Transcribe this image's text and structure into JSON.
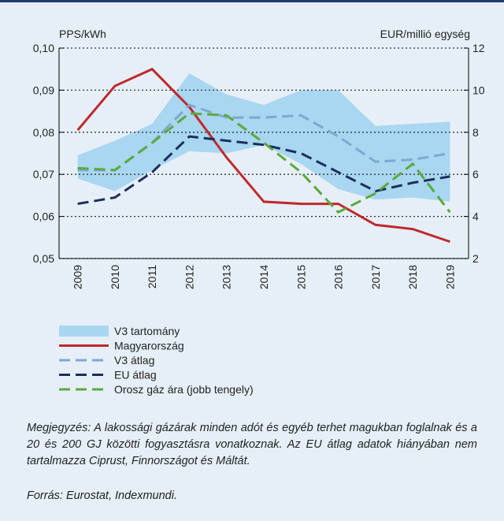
{
  "chart_data": {
    "type": "line",
    "ylabel": "PPS/kWh",
    "y2label": "EUR/millió egység",
    "categories": [
      "2009",
      "2010",
      "2011",
      "2012",
      "2013",
      "2014",
      "2015",
      "2016",
      "2017",
      "2018",
      "2019"
    ],
    "ylim": [
      0.05,
      0.1
    ],
    "yticks": [
      {
        "value": 0.05,
        "label": "0,05"
      },
      {
        "value": 0.06,
        "label": "0,06"
      },
      {
        "value": 0.07,
        "label": "0,07"
      },
      {
        "value": 0.08,
        "label": "0,08"
      },
      {
        "value": 0.09,
        "label": "0,09"
      },
      {
        "value": 0.1,
        "label": "0,10"
      }
    ],
    "y2lim": [
      2,
      12
    ],
    "y2ticks": [
      2,
      4,
      6,
      8,
      10,
      12
    ],
    "grid": true,
    "band": {
      "name": "V3 tartomány",
      "color": "#a9d6f0",
      "low": [
        0.069,
        0.066,
        0.071,
        0.0755,
        0.075,
        0.077,
        0.0725,
        0.0665,
        0.064,
        0.0645,
        0.0635
      ],
      "high": [
        0.0745,
        0.078,
        0.082,
        0.094,
        0.089,
        0.0865,
        0.09,
        0.09,
        0.0815,
        0.082,
        0.0825
      ]
    },
    "series": [
      {
        "name": "Magyarország",
        "color": "#c0282d",
        "dash": "none",
        "values": [
          0.0805,
          0.091,
          0.095,
          0.086,
          0.074,
          0.0635,
          0.063,
          0.063,
          0.058,
          0.057,
          0.054
        ]
      },
      {
        "name": "V3 átlag",
        "color": "#7fa7d0",
        "dash": "14 7",
        "values": [
          0.071,
          0.071,
          0.0775,
          0.0865,
          0.0835,
          0.0835,
          0.084,
          0.079,
          0.073,
          0.0735,
          0.075
        ]
      },
      {
        "name": "EU átlag",
        "color": "#1b2f5c",
        "dash": "14 7",
        "values": [
          0.063,
          0.0645,
          0.0705,
          0.079,
          0.078,
          0.077,
          0.075,
          0.0705,
          0.066,
          0.068,
          0.0695
        ]
      },
      {
        "name": "Orosz gáz ára (jobb tengely)",
        "color": "#5aaa3c",
        "dash": "14 7",
        "axis": "y2",
        "values": [
          6.3,
          6.2,
          7.5,
          8.9,
          8.8,
          7.5,
          6.1,
          4.2,
          5.1,
          6.5,
          4.2
        ]
      }
    ]
  },
  "notes": {
    "remark": "Megjegyzés: A lakossági gázárak minden adót és egyéb terhet magukban foglalnak és a 20 és 200 GJ közötti fogyasztásra vonatkoznak. Az EU átlag adatok hiányában nem tartalmazza Ciprust, Finnországot és Máltát.",
    "source": "Forrás: Eurostat, Indexmundi."
  }
}
